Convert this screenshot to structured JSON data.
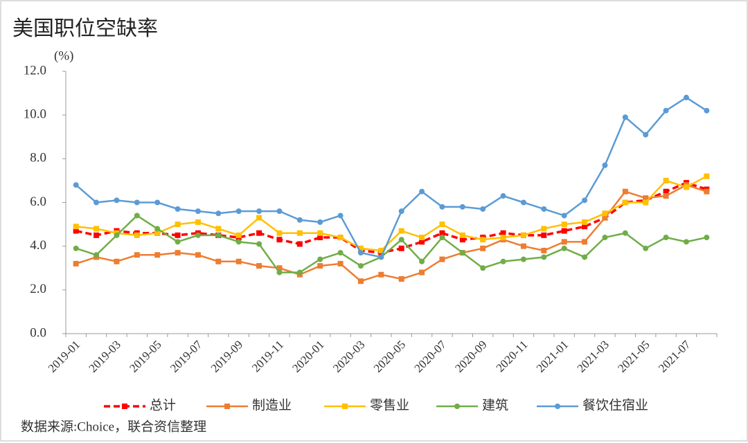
{
  "chart_data": {
    "type": "line",
    "title": "美国职位空缺率",
    "y_label": "(%)",
    "source": "数据来源:Choice，联合资信整理",
    "categories": [
      "2019-01",
      null,
      "2019-03",
      null,
      "2019-05",
      null,
      "2019-07",
      null,
      "2019-09",
      null,
      "2019-11",
      null,
      "2020-01",
      null,
      "2020-03",
      null,
      "2020-05",
      null,
      "2020-07",
      null,
      "2020-09",
      null,
      "2020-11",
      null,
      "2021-01",
      null,
      "2021-03",
      null,
      "2021-05",
      null,
      "2021-07",
      null
    ],
    "series": [
      {
        "name": "总计",
        "color": "#ff0000",
        "dashed": true,
        "marker": "square",
        "values": [
          4.7,
          4.5,
          4.7,
          4.6,
          4.6,
          4.5,
          4.6,
          4.5,
          4.4,
          4.6,
          4.3,
          4.1,
          4.4,
          4.4,
          3.8,
          3.7,
          3.9,
          4.2,
          4.6,
          4.3,
          4.4,
          4.6,
          4.5,
          4.5,
          4.7,
          4.9,
          5.3,
          6.0,
          6.1,
          6.5,
          6.9,
          6.6
        ]
      },
      {
        "name": "制造业",
        "color": "#ed7d31",
        "dashed": false,
        "marker": "square",
        "values": [
          3.2,
          3.5,
          3.3,
          3.6,
          3.6,
          3.7,
          3.6,
          3.3,
          3.3,
          3.1,
          3.0,
          2.7,
          3.1,
          3.2,
          2.4,
          2.7,
          2.5,
          2.8,
          3.4,
          3.7,
          3.9,
          4.3,
          4.0,
          3.8,
          4.2,
          4.2,
          5.3,
          6.5,
          6.2,
          6.3,
          6.8,
          6.5
        ]
      },
      {
        "name": "零售业",
        "color": "#ffc000",
        "dashed": false,
        "marker": "square",
        "values": [
          4.9,
          4.8,
          4.6,
          4.5,
          4.6,
          5.0,
          5.1,
          4.8,
          4.5,
          5.3,
          4.6,
          4.6,
          4.6,
          4.4,
          3.9,
          3.8,
          4.7,
          4.4,
          5.0,
          4.5,
          4.3,
          4.4,
          4.5,
          4.8,
          5.0,
          5.1,
          5.5,
          6.0,
          6.0,
          7.0,
          6.7,
          7.2
        ]
      },
      {
        "name": "建筑",
        "color": "#70ad47",
        "dashed": false,
        "marker": "circle",
        "values": [
          3.9,
          3.6,
          4.5,
          5.4,
          4.8,
          4.2,
          4.5,
          4.5,
          4.2,
          4.1,
          2.8,
          2.8,
          3.4,
          3.7,
          3.1,
          3.5,
          4.3,
          3.3,
          4.4,
          3.7,
          3.0,
          3.3,
          3.4,
          3.5,
          3.9,
          3.5,
          4.4,
          4.6,
          3.9,
          4.4,
          4.2,
          4.4
        ]
      },
      {
        "name": "餐饮住宿业",
        "color": "#5b9bd5",
        "dashed": false,
        "marker": "circle",
        "values": [
          6.8,
          6.0,
          6.1,
          6.0,
          6.0,
          5.7,
          5.6,
          5.5,
          5.6,
          5.6,
          5.6,
          5.2,
          5.1,
          5.4,
          3.7,
          3.5,
          5.6,
          6.5,
          5.8,
          5.8,
          5.7,
          6.3,
          6.0,
          5.7,
          5.4,
          6.1,
          7.7,
          9.9,
          9.1,
          10.2,
          10.8,
          10.2
        ]
      }
    ],
    "ylim": [
      0,
      12
    ],
    "yticks": [
      {
        "value": 0,
        "label": "0.0"
      },
      {
        "value": 2,
        "label": "2.0"
      },
      {
        "value": 4,
        "label": "4.0"
      },
      {
        "value": 6,
        "label": "6.0"
      },
      {
        "value": 8,
        "label": "8.0"
      },
      {
        "value": 10,
        "label": "10.0"
      },
      {
        "value": 12,
        "label": "12.0"
      }
    ],
    "grid": false
  }
}
